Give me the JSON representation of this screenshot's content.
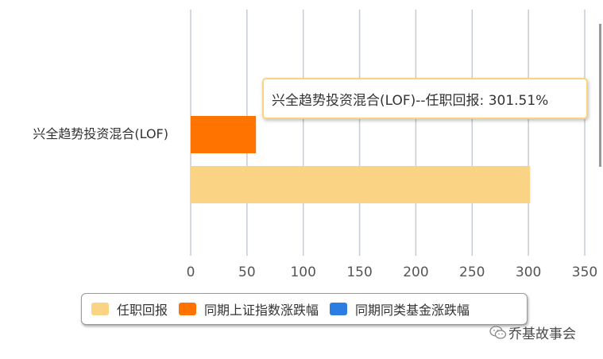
{
  "chart_data": {
    "type": "bar",
    "orientation": "horizontal",
    "categories": [
      "兴全趋势投资混合(LOF)"
    ],
    "series": [
      {
        "name": "同期上证指数涨跌幅",
        "values": [
          58
        ],
        "color": "#ff7300"
      },
      {
        "name": "任职回报",
        "values": [
          301.51
        ],
        "color": "#fad385"
      },
      {
        "name": "同期同类基金涨跌幅",
        "values": [
          null
        ],
        "color": "#2b7de1"
      }
    ],
    "xlim": [
      0,
      350
    ],
    "xticks": [
      0,
      50,
      100,
      150,
      200,
      250,
      300,
      350
    ],
    "grid": true,
    "legend_position": "bottom",
    "legend": [
      {
        "label": "任职回报",
        "color": "#fad385"
      },
      {
        "label": "同期上证指数涨跌幅",
        "color": "#ff7300"
      },
      {
        "label": "同期同类基金涨跌幅",
        "color": "#2b7de1"
      }
    ],
    "tooltip": {
      "text": "兴全趋势投资混合(LOF)--任职回报: 301.51%"
    }
  },
  "watermark": {
    "text": "乔基故事会",
    "icon": "wechat-icon"
  }
}
